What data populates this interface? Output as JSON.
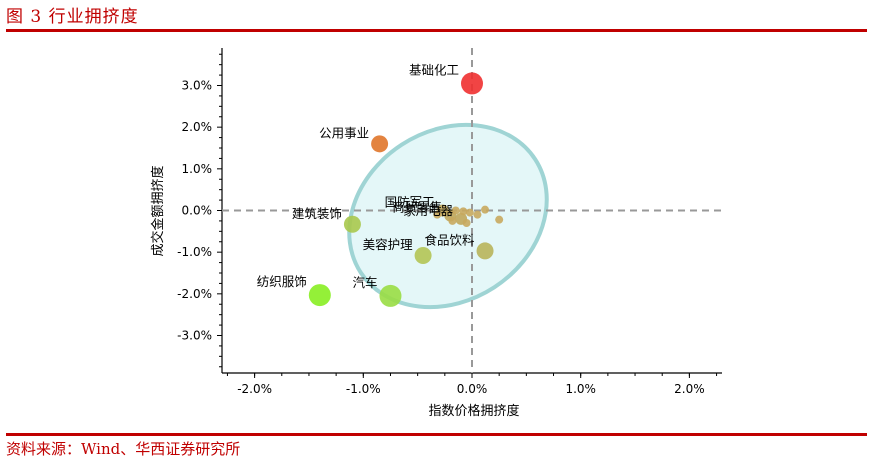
{
  "header": {
    "title": "图 3 行业拥挤度"
  },
  "footer": {
    "source": "资料来源：Wind、华西证券研究所"
  },
  "colors": {
    "brand_red": "#c00000",
    "ellipse_fill": "#e4f7f8",
    "ellipse_stroke": "#9fd4d4"
  },
  "chart_data": {
    "type": "scatter",
    "title": "",
    "xlabel": "指数价格拥挤度",
    "ylabel": "成交金额拥挤度",
    "xlim": [
      -2.3,
      2.3
    ],
    "ylim": [
      -3.9,
      3.9
    ],
    "x_ticks": [
      -2.0,
      -1.0,
      0.0,
      1.0,
      2.0
    ],
    "x_tick_labels": [
      "-2.0%",
      "-1.0%",
      "0.0%",
      "1.0%",
      "2.0%"
    ],
    "y_ticks": [
      3.0,
      2.0,
      1.0,
      0.0,
      -1.0,
      -2.0,
      -3.0
    ],
    "y_tick_labels": [
      "3.0%",
      "2.0%",
      "1.0%",
      "0.0%",
      "-1.0%",
      "-2.0%",
      "-3.0%"
    ],
    "reference_lines": {
      "x": 0.0,
      "y": 0.0,
      "style": "dashed"
    },
    "points": [
      {
        "label": "基础化工",
        "x": 0.0,
        "y": 3.05,
        "color": "#f03030",
        "size": "large"
      },
      {
        "label": "公用事业",
        "x": -0.85,
        "y": 1.6,
        "color": "#e0752a",
        "size": "medium"
      },
      {
        "label": "纺织服饰",
        "x": -1.4,
        "y": -2.03,
        "color": "#88ee22",
        "size": "large"
      },
      {
        "label": "汽车",
        "x": -0.75,
        "y": -2.05,
        "color": "#99dd44",
        "size": "large"
      },
      {
        "label": "建筑装饰",
        "x": -1.1,
        "y": -0.33,
        "color": "#a8c84c",
        "size": "medium"
      },
      {
        "label": "美容护理",
        "x": -0.45,
        "y": -1.08,
        "color": "#b2c454",
        "size": "medium"
      },
      {
        "label": "食品饮料",
        "x": 0.12,
        "y": -0.97,
        "color": "#b8b45a",
        "size": "medium"
      },
      {
        "label": "国防军工",
        "x": -0.27,
        "y": 0.0,
        "color": "#c0a65a",
        "size": "small"
      },
      {
        "label": "商贸零售",
        "x": -0.2,
        "y": -0.12,
        "color": "#c0a65a",
        "size": "small"
      },
      {
        "label": "家用电器",
        "x": -0.1,
        "y": -0.2,
        "color": "#c0a65a",
        "size": "small"
      },
      {
        "label": "",
        "x": -0.15,
        "y": 0.0,
        "color": "#c8a85e",
        "size": "tiny"
      },
      {
        "label": "",
        "x": -0.08,
        "y": -0.02,
        "color": "#c8a85e",
        "size": "tiny"
      },
      {
        "label": "",
        "x": -0.02,
        "y": -0.05,
        "color": "#c8a85e",
        "size": "tiny"
      },
      {
        "label": "",
        "x": 0.05,
        "y": -0.1,
        "color": "#c8a85e",
        "size": "tiny"
      },
      {
        "label": "",
        "x": 0.12,
        "y": 0.02,
        "color": "#c8a85e",
        "size": "tiny"
      },
      {
        "label": "",
        "x": 0.25,
        "y": -0.22,
        "color": "#c8a85e",
        "size": "tiny"
      },
      {
        "label": "",
        "x": -0.32,
        "y": -0.1,
        "color": "#c8a85e",
        "size": "tiny"
      },
      {
        "label": "",
        "x": -0.18,
        "y": -0.25,
        "color": "#c8a85e",
        "size": "tiny"
      },
      {
        "label": "",
        "x": -0.05,
        "y": -0.3,
        "color": "#c8a85e",
        "size": "tiny"
      }
    ]
  }
}
